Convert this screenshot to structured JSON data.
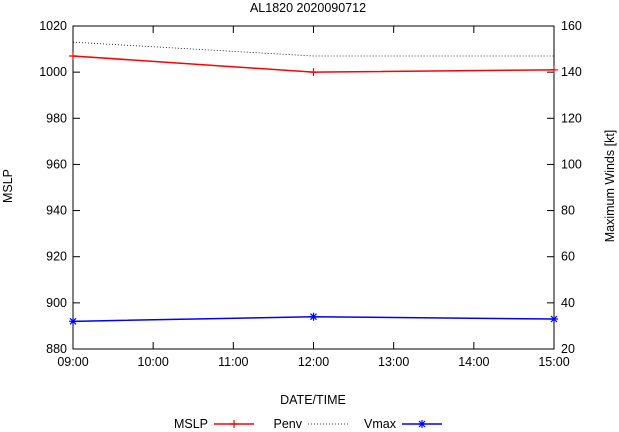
{
  "chart_data": {
    "type": "line",
    "title": "AL1820 2020090712",
    "xlabel": "DATE/TIME",
    "ylabel_left": "MSLP",
    "ylabel_right": "Maximum Winds [kt]",
    "x_ticks": [
      "09:00",
      "10:00",
      "11:00",
      "12:00",
      "13:00",
      "14:00",
      "15:00"
    ],
    "x_hours": [
      9,
      10,
      11,
      12,
      13,
      14,
      15
    ],
    "xlim": [
      9,
      15
    ],
    "ylim_left": [
      880,
      1020
    ],
    "yticks_left": [
      880,
      900,
      920,
      940,
      960,
      980,
      1000,
      1020
    ],
    "ylim_right": [
      20,
      160
    ],
    "yticks_right": [
      20,
      40,
      60,
      80,
      100,
      120,
      140,
      160
    ],
    "grid": false,
    "legend_placement": "bottom",
    "series": [
      {
        "name": "MSLP",
        "axis": "left",
        "style": "line-plus",
        "color": "#ff0000",
        "x": [
          9,
          12,
          15
        ],
        "values": [
          1007,
          1000,
          1001
        ]
      },
      {
        "name": "Penv",
        "axis": "left",
        "style": "dotted",
        "color": "#000000",
        "x": [
          9,
          12,
          15
        ],
        "values": [
          1013,
          1007,
          1007
        ]
      },
      {
        "name": "Vmax",
        "axis": "right",
        "style": "line-star",
        "color": "#0000ff",
        "x": [
          9,
          12,
          15
        ],
        "values": [
          32,
          34,
          33
        ]
      }
    ]
  }
}
